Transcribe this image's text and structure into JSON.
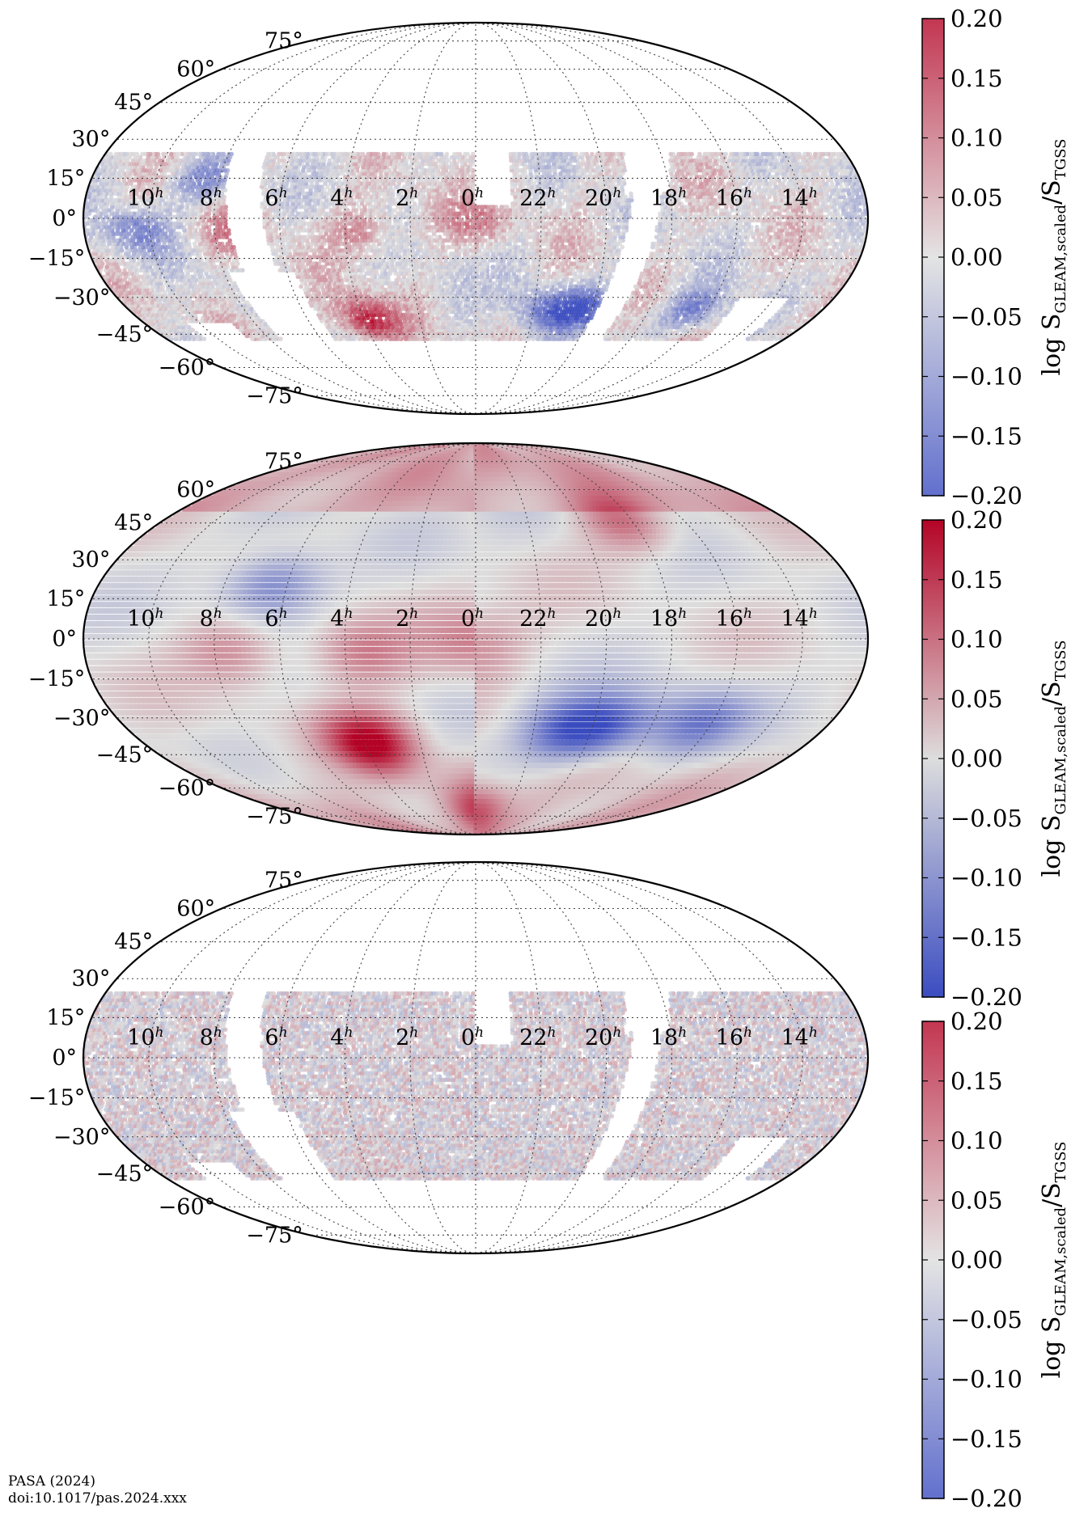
{
  "footer": {
    "journal": "PASA (2024)",
    "doi": "doi:10.1017/pas.2024.xxx"
  },
  "colors": {
    "cmap_low": "#3b4cc0",
    "cmap_mid": "#dddddd",
    "cmap_high": "#b40426",
    "outline": "#000000",
    "grid": "#444444"
  },
  "chart_data": [
    {
      "type": "heatmap",
      "projection": "mollweide",
      "ra_labels": [
        "10",
        "8",
        "6",
        "4",
        "2",
        "0",
        "22",
        "20",
        "18",
        "16",
        "14"
      ],
      "ra_unit_superscript": "h",
      "dec_labels": [
        "75°",
        "60°",
        "45°",
        "30°",
        "15°",
        "0°",
        "−15°",
        "−30°",
        "−45°",
        "−60°",
        "−75°"
      ],
      "grid": true,
      "colorbar": {
        "label_text": "log S",
        "label_sub1": "GLEAM,scaled",
        "label_mid": "/S",
        "label_sub2": "TGSS",
        "range": [
          -0.2,
          0.2
        ],
        "ticks": [
          "0.20",
          "0.15",
          "0.10",
          "0.05",
          "0.00",
          "−0.05",
          "−0.10",
          "−0.15",
          "−0.20"
        ]
      },
      "coverage": "measured ratios over surveyed sky, dec approx -45° to +25°, with gaps",
      "features": [
        {
          "ra": 3.8,
          "dec": -39,
          "value": 0.19
        },
        {
          "ra": 21.5,
          "dec": -35,
          "value": -0.14
        },
        {
          "ra": 20.2,
          "dec": -34,
          "value": -0.15
        },
        {
          "ra": 16.5,
          "dec": -35,
          "value": -0.13
        },
        {
          "ra": 7.5,
          "dec": -5,
          "value": 0.08
        },
        {
          "ra": 3.5,
          "dec": -5,
          "value": 0.09
        },
        {
          "ra": 0.0,
          "dec": -2,
          "value": 0.07
        },
        {
          "ra": 8.5,
          "dec": 15,
          "value": -0.12
        },
        {
          "ra": 10.5,
          "dec": -5,
          "value": -0.12
        }
      ]
    },
    {
      "type": "heatmap",
      "projection": "mollweide",
      "ra_labels": [
        "10",
        "8",
        "6",
        "4",
        "2",
        "0",
        "22",
        "20",
        "18",
        "16",
        "14"
      ],
      "ra_unit_superscript": "h",
      "dec_labels": [
        "75°",
        "60°",
        "45°",
        "30°",
        "15°",
        "0°",
        "−15°",
        "−30°",
        "−45°",
        "−60°",
        "−75°"
      ],
      "grid": true,
      "colorbar": {
        "label_text": "log S",
        "label_sub1": "GLEAM,scaled",
        "label_mid": "/S",
        "label_sub2": "TGSS",
        "range": [
          -0.2,
          0.2
        ],
        "ticks": [
          "0.20",
          "0.15",
          "0.10",
          "0.05",
          "0.00",
          "−0.05",
          "−0.10",
          "−0.15",
          "−0.20"
        ]
      },
      "coverage": "full-sky smoothed correction model",
      "features": [
        {
          "ra": 6.5,
          "dec": 20,
          "value": -0.13
        },
        {
          "ra": 3.8,
          "dec": -40,
          "value": 0.2
        },
        {
          "ra": 21.0,
          "dec": -35,
          "value": -0.14
        },
        {
          "ra": 19.5,
          "dec": -33,
          "value": -0.15
        },
        {
          "ra": 16.5,
          "dec": -32,
          "value": -0.13
        },
        {
          "ra": 18.5,
          "dec": 45,
          "value": 0.1
        },
        {
          "ra": 0.0,
          "dec": -70,
          "value": 0.1
        },
        {
          "ra": 7.5,
          "dec": -5,
          "value": 0.08
        },
        {
          "ra": 3.5,
          "dec": -5,
          "value": 0.09
        },
        {
          "ra": 0.0,
          "dec": -2,
          "value": 0.07
        }
      ]
    },
    {
      "type": "heatmap",
      "projection": "mollweide",
      "ra_labels": [
        "10",
        "8",
        "6",
        "4",
        "2",
        "0",
        "22",
        "20",
        "18",
        "16",
        "14"
      ],
      "ra_unit_superscript": "h",
      "dec_labels": [
        "75°",
        "60°",
        "45°",
        "30°",
        "15°",
        "0°",
        "−15°",
        "−30°",
        "−45°",
        "−60°",
        "−75°"
      ],
      "grid": true,
      "colorbar": {
        "label_text": "log S",
        "label_sub1": "GLEAM,scaled",
        "label_mid": "/S",
        "label_sub2": "TGSS",
        "range": [
          -0.2,
          0.2
        ],
        "ticks": [
          "0.20",
          "0.15",
          "0.10",
          "0.05",
          "0.00",
          "−0.05",
          "−0.10",
          "−0.15",
          "−0.20"
        ]
      },
      "coverage": "residual ratios after correction, scattered near 0.00",
      "features": [
        {
          "ra": 3.8,
          "dec": -39,
          "value": 0.08
        }
      ]
    }
  ]
}
